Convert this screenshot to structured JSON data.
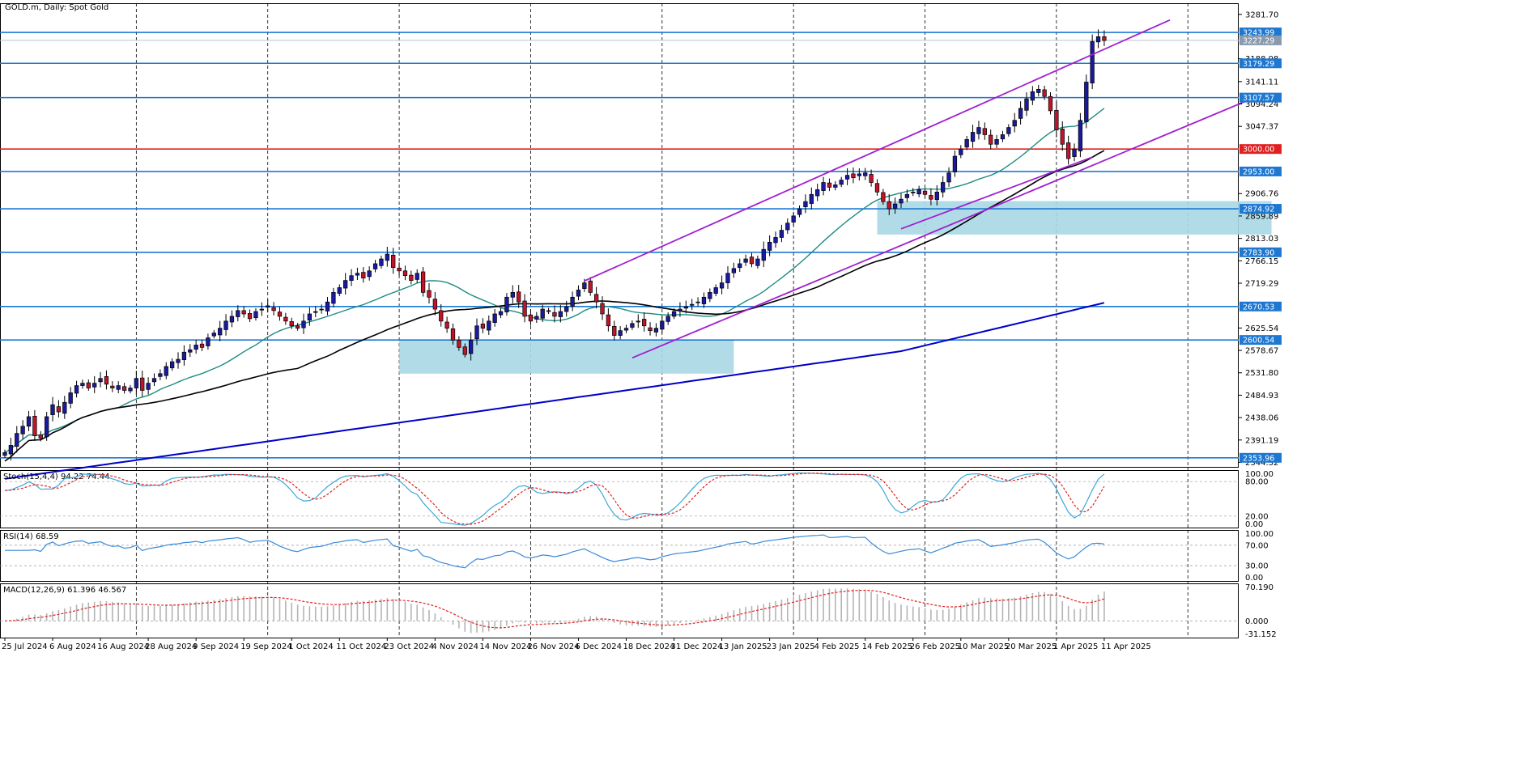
{
  "chart_data": {
    "type": "candlestick",
    "title": "GOLD.m, Daily:  Spot Gold",
    "colors": {
      "up_candle": "#1a1aa0",
      "down_candle": "#c0142a",
      "sma20": "#1e8c82",
      "sma50": "#000000",
      "sma200": "#0000c8",
      "level": "#1e78d2",
      "key_level": "#e02020",
      "channel": "#a020d0",
      "zone": "#a8d8e4",
      "stoch_main": "#3aa8d8",
      "stoch_signal": "#e02020",
      "rsi": "#3a8ad8",
      "macd_hist": "#b4b4b4",
      "macd_signal": "#e02020"
    },
    "price_axis": {
      "ylim": [
        2335,
        3305
      ],
      "tick_labels": [
        "3281.70",
        "3188.98",
        "3141.11",
        "3094.24",
        "3047.37",
        "2906.76",
        "2859.89",
        "2813.03",
        "2766.15",
        "2719.29",
        "2625.54",
        "2578.67",
        "2531.80",
        "2484.93",
        "2438.06",
        "2391.19",
        "2344.32"
      ]
    },
    "horizontal_levels": [
      {
        "value": 3243.99,
        "label": "3243.99",
        "kind": "level"
      },
      {
        "value": 3227.29,
        "label": "3227.29",
        "kind": "current"
      },
      {
        "value": 3179.29,
        "label": "3179.29",
        "kind": "level"
      },
      {
        "value": 3107.57,
        "label": "3107.57",
        "kind": "level"
      },
      {
        "value": 3000.0,
        "label": "3000.00",
        "kind": "key"
      },
      {
        "value": 2953.0,
        "label": "2953.00",
        "kind": "level"
      },
      {
        "value": 2874.92,
        "label": "2874.92",
        "kind": "level"
      },
      {
        "value": 2783.9,
        "label": "2783.90",
        "kind": "level"
      },
      {
        "value": 2670.53,
        "label": "2670.53",
        "kind": "level"
      },
      {
        "value": 2600.54,
        "label": "2600.54",
        "kind": "level"
      },
      {
        "value": 2353.96,
        "label": "2353.96",
        "kind": "level"
      }
    ],
    "x_axis_labels": [
      {
        "label": "25 Jul 2024",
        "bar": 0
      },
      {
        "label": "6 Aug 2024",
        "bar": 8
      },
      {
        "label": "16 Aug 2024",
        "bar": 16
      },
      {
        "label": "28 Aug 2024",
        "bar": 24
      },
      {
        "label": "9 Sep 2024",
        "bar": 32
      },
      {
        "label": "19 Sep 2024",
        "bar": 40
      },
      {
        "label": "1 Oct 2024",
        "bar": 48
      },
      {
        "label": "11 Oct 2024",
        "bar": 56
      },
      {
        "label": "23 Oct 2024",
        "bar": 64
      },
      {
        "label": "4 Nov 2024",
        "bar": 72
      },
      {
        "label": "14 Nov 2024",
        "bar": 80
      },
      {
        "label": "26 Nov 2024",
        "bar": 88
      },
      {
        "label": "6 Dec 2024",
        "bar": 96
      },
      {
        "label": "18 Dec 2024",
        "bar": 104
      },
      {
        "label": "31 Dec 2024",
        "bar": 112
      },
      {
        "label": "13 Jan 2025",
        "bar": 120
      },
      {
        "label": "23 Jan 2025",
        "bar": 128
      },
      {
        "label": "4 Feb 2025",
        "bar": 136
      },
      {
        "label": "14 Feb 2025",
        "bar": 144
      },
      {
        "label": "26 Feb 2025",
        "bar": 152
      },
      {
        "label": "10 Mar 2025",
        "bar": 160
      },
      {
        "label": "20 Mar 2025",
        "bar": 168
      },
      {
        "label": "1 Apr 2025",
        "bar": 176
      },
      {
        "label": "11 Apr 2025",
        "bar": 184
      }
    ],
    "vertical_grid_bars": [
      22,
      44,
      66,
      88,
      110,
      132,
      154,
      176,
      198
    ],
    "bar_count_visible": 205,
    "closes": [
      2365,
      2380,
      2405,
      2420,
      2440,
      2400,
      2395,
      2440,
      2465,
      2450,
      2470,
      2490,
      2505,
      2510,
      2500,
      2510,
      2520,
      2508,
      2500,
      2505,
      2495,
      2500,
      2520,
      2495,
      2510,
      2520,
      2530,
      2545,
      2555,
      2560,
      2575,
      2580,
      2590,
      2585,
      2605,
      2615,
      2625,
      2640,
      2650,
      2662,
      2655,
      2645,
      2660,
      2665,
      2672,
      2662,
      2650,
      2640,
      2630,
      2625,
      2640,
      2655,
      2660,
      2665,
      2680,
      2700,
      2710,
      2725,
      2735,
      2740,
      2730,
      2745,
      2760,
      2770,
      2780,
      2752,
      2745,
      2735,
      2725,
      2740,
      2700,
      2690,
      2665,
      2640,
      2625,
      2600,
      2585,
      2570,
      2600,
      2630,
      2625,
      2640,
      2655,
      2660,
      2690,
      2700,
      2680,
      2650,
      2640,
      2650,
      2665,
      2660,
      2650,
      2660,
      2670,
      2690,
      2705,
      2720,
      2700,
      2680,
      2655,
      2630,
      2610,
      2620,
      2625,
      2635,
      2640,
      2630,
      2620,
      2625,
      2640,
      2650,
      2660,
      2665,
      2670,
      2675,
      2680,
      2690,
      2700,
      2710,
      2720,
      2740,
      2750,
      2760,
      2770,
      2760,
      2770,
      2790,
      2805,
      2815,
      2830,
      2845,
      2860,
      2875,
      2890,
      2905,
      2915,
      2930,
      2920,
      2925,
      2935,
      2945,
      2940,
      2948,
      2950,
      2930,
      2910,
      2890,
      2875,
      2885,
      2895,
      2905,
      2910,
      2915,
      2905,
      2895,
      2910,
      2930,
      2950,
      2985,
      3000,
      3020,
      3035,
      3045,
      3030,
      3010,
      3020,
      3030,
      3045,
      3060,
      3085,
      3105,
      3120,
      3125,
      3110,
      3080,
      3040,
      3010,
      2980,
      3000,
      3060,
      3140,
      3225,
      3235,
      3227
    ]
  },
  "indicators": {
    "stochastic": {
      "label": "Stoch(15,4,4) 94.22 74.44",
      "levels": [
        "100.00",
        "80.00",
        "20.00",
        "0.00"
      ]
    },
    "rsi": {
      "label": "RSI(14) 68.59",
      "levels": [
        "100.00",
        "70.00",
        "30.00",
        "0.00"
      ]
    },
    "macd": {
      "label": "MACD(12,26,9) 61.396 46.567",
      "levels": [
        "70.190",
        "0.000",
        "-31.152"
      ]
    }
  },
  "annotations": {
    "channels": [
      {
        "name": "upper-channel",
        "points": [
          [
            97,
            2724
          ],
          [
            195,
            3270
          ]
        ]
      },
      {
        "name": "lower-channel",
        "points": [
          [
            105,
            2563
          ],
          [
            210,
            3112
          ]
        ]
      },
      {
        "name": "short-channel",
        "points": [
          [
            150,
            2833
          ],
          [
            182,
            2983
          ]
        ]
      }
    ],
    "zones": [
      {
        "name": "support-zone-nov",
        "bars": [
          66,
          122
        ],
        "prices": [
          2530,
          2600
        ]
      },
      {
        "name": "support-zone-feb",
        "bars": [
          146,
          212
        ],
        "prices": [
          2821,
          2891
        ]
      }
    ]
  }
}
